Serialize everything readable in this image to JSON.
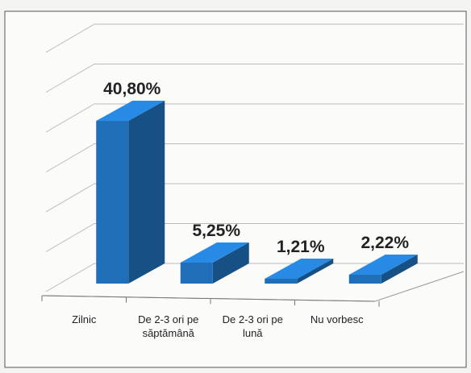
{
  "chart_data": {
    "type": "bar3d",
    "categories": [
      "Zilnic",
      "De 2-3 ori pe săptămână",
      "De 2-3 ori pe lună",
      "Nu vorbesc"
    ],
    "values": [
      40.8,
      5.25,
      1.21,
      2.22
    ],
    "value_labels": [
      "40,80%",
      "5,25%",
      "1,21%",
      "2,22%"
    ],
    "color": "#1f6fb8",
    "ylim": [
      0,
      60
    ],
    "yticks": [
      0,
      10,
      20,
      30,
      40,
      50,
      60
    ],
    "grid": true
  }
}
